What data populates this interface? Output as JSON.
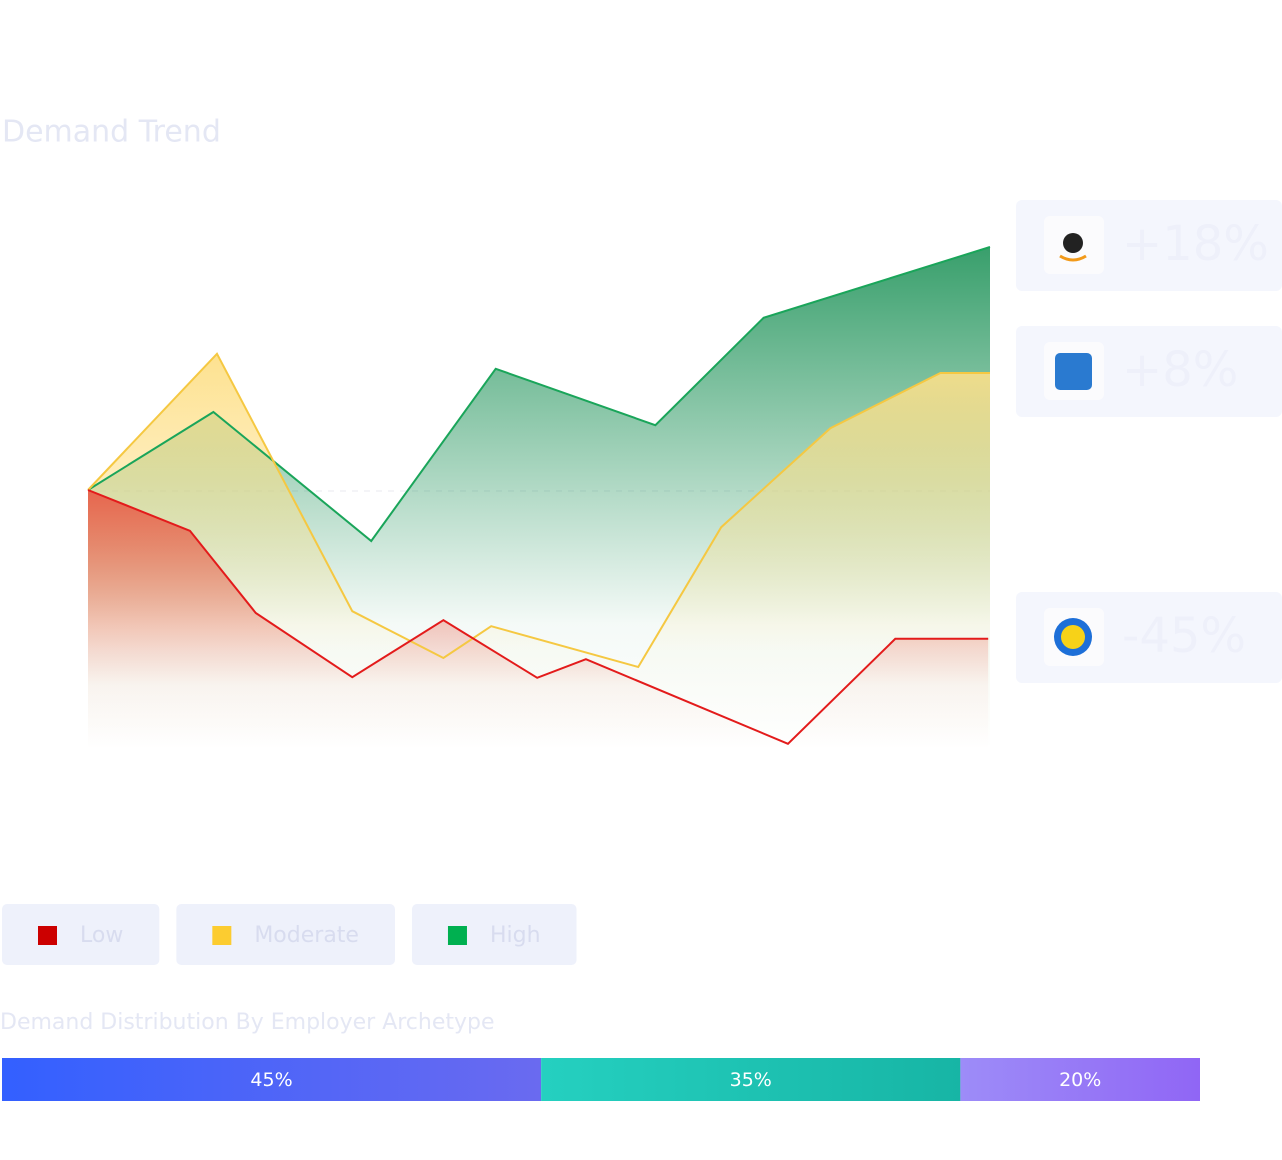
{
  "chart_data": [
    {
      "type": "area",
      "title": "Demand Trend",
      "xlim": [
        0,
        100
      ],
      "ylim": [
        0,
        100
      ],
      "series": [
        {
          "name": "Low",
          "color": "#cc0000",
          "line_color": "#e31b1b",
          "fill_color": "#e8604a",
          "x": [
            0,
            11.3,
            18.6,
            29.3,
            39.4,
            49.8,
            55.2,
            77.6,
            89.5,
            99.8
          ],
          "values": [
            50,
            43.2,
            29.5,
            18.8,
            28.3,
            18.7,
            21.8,
            7.7,
            25.2,
            25.2
          ]
        },
        {
          "name": "Moderate",
          "color": "#fccc30",
          "line_color": "#f5c842",
          "fill_color": "#fde08a",
          "x": [
            0,
            14.3,
            29.3,
            39.4,
            44.7,
            61,
            70.2,
            82.3,
            94.5,
            100
          ],
          "values": [
            50,
            72.7,
            29.8,
            22,
            27.3,
            20.5,
            43.8,
            60.3,
            69.5,
            69.5
          ]
        },
        {
          "name": "High",
          "color": "#00b050",
          "line_color": "#1aa55a",
          "fill_color": "#2e9a64",
          "x": [
            0,
            13.9,
            31.4,
            45.2,
            62.9,
            74.9,
            100
          ],
          "values": [
            50,
            63,
            41.5,
            70.2,
            60.8,
            78.7,
            90.5
          ]
        }
      ],
      "annotations": [
        "+18%",
        "+8%",
        "-45%"
      ]
    },
    {
      "type": "stacked_bar",
      "title": "Demand Distribution By Employer Archetype",
      "xlim": [
        0,
        100
      ],
      "values": [
        45,
        35,
        20
      ],
      "value_labels": [
        "45%",
        "35%",
        "20%"
      ],
      "colors": [
        [
          "#3360ff",
          "#6a6af0"
        ],
        [
          "#25d0c0",
          "#17b5a5"
        ],
        [
          "#9d8cf8",
          "#9066f5"
        ]
      ]
    }
  ]
}
